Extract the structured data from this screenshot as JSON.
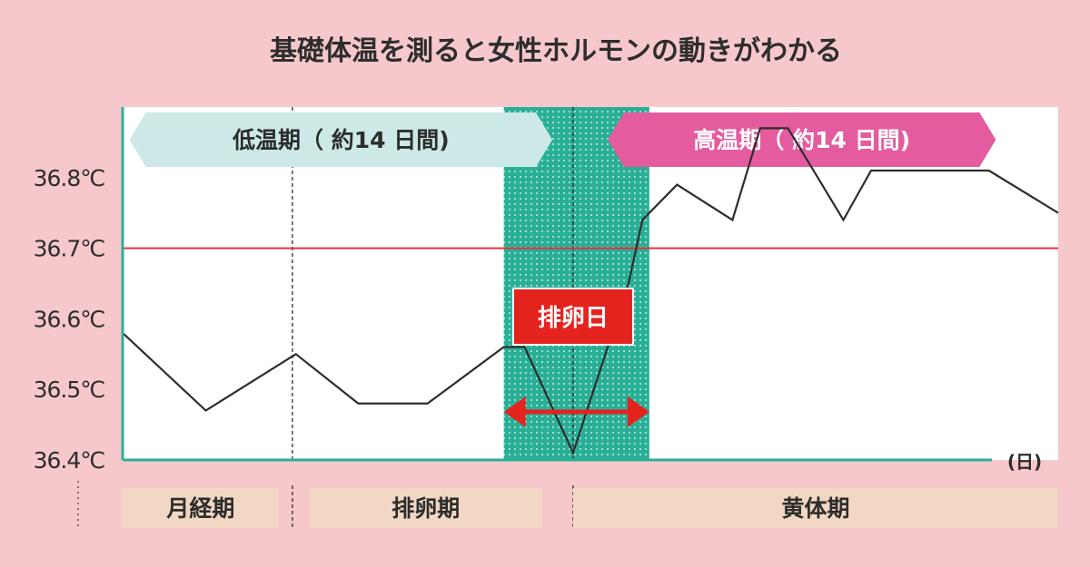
{
  "chart_data": {
    "type": "line",
    "title": "基礎体温を測ると女性ホルモンの動きがわかる",
    "xlabel": "(日)",
    "ylabel": "",
    "y_ticks": [
      "36.8℃",
      "36.7℃",
      "36.6℃",
      "36.5℃",
      "36.4℃"
    ],
    "ylim": [
      36.4,
      36.9
    ],
    "xlim": [
      1,
      28
    ],
    "highlight_tick": "36.7℃",
    "reference_line": 36.7,
    "series": [
      {
        "x": [
          1,
          3.4,
          6,
          7.8,
          9.8,
          12,
          12.6,
          14,
          15.6,
          16,
          17,
          18.6,
          19.4,
          20.2,
          21.8,
          22.6,
          26,
          28
        ],
        "values": [
          36.58,
          36.47,
          36.55,
          36.48,
          36.48,
          36.56,
          36.56,
          36.41,
          36.65,
          36.74,
          36.79,
          36.74,
          36.87,
          36.87,
          36.74,
          36.81,
          36.81,
          36.75
        ]
      }
    ],
    "ovulation_window": [
      12,
      16.2
    ],
    "ovulation_day": 14,
    "ovulation_label": "排卵日",
    "bands": [
      {
        "label": "低温期（ 約14 日間)",
        "color": "#cce9e7",
        "from": 1.2,
        "to": 13.4,
        "text_color": "#2d2d2d"
      },
      {
        "label": "高温期（ 約14 日間)",
        "color": "#e45c9f",
        "from": 15,
        "to": 26.2,
        "text_color": "#ffffff"
      }
    ],
    "phases": [
      {
        "label": "月経期",
        "from": 1,
        "to": 5.5
      },
      {
        "label": "排卵期",
        "from": 6.4,
        "to": 13.1
      },
      {
        "label": "黄体期",
        "from": 14,
        "to": 28
      }
    ],
    "divider_days": [
      5.9,
      14
    ],
    "colors": {
      "line": "#2d2d2d",
      "reference": "#e5323f",
      "highlight_tick": "#e5323f",
      "ovulation_fill": "#2aaf97",
      "ovulation_box": "#e4231e",
      "arrow": "#e4231e",
      "axis": "#2aaf97",
      "phase_fill": "#f2d8c4"
    }
  }
}
